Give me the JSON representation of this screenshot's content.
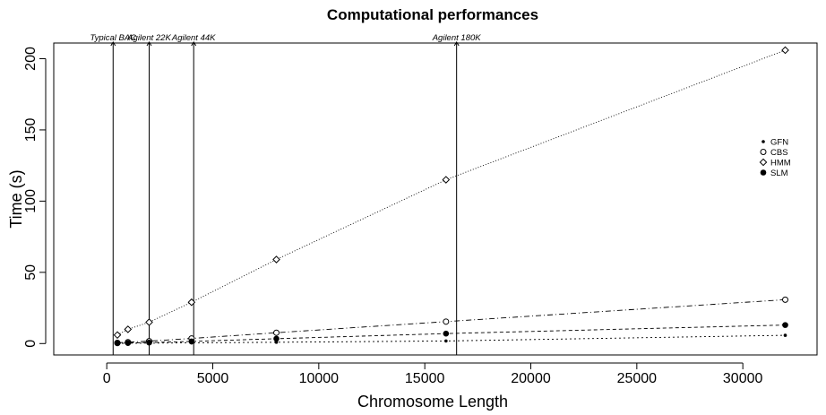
{
  "chart_data": {
    "type": "line",
    "title": "Computational performances",
    "xlabel": "Chromosome Length",
    "ylabel": "Time (s)",
    "xlim": [
      -2500,
      33500
    ],
    "ylim": [
      -8,
      211
    ],
    "xticks": [
      0,
      5000,
      10000,
      15000,
      20000,
      25000,
      30000
    ],
    "yticks": [
      0,
      50,
      100,
      150,
      200
    ],
    "legend_position": "right",
    "markers": [
      {
        "label": "Typical BAC",
        "x": 300
      },
      {
        "label": "Agilent 22K",
        "x": 2000
      },
      {
        "label": "Agilent 44K",
        "x": 4100
      },
      {
        "label": "Agilent 180K",
        "x": 16500
      }
    ],
    "series": [
      {
        "name": "GFN",
        "marker": "small-dot",
        "dash": "2,3",
        "x": [
          500,
          1000,
          2000,
          4000,
          8000,
          16000,
          32000
        ],
        "y": [
          0.1,
          0.2,
          0.3,
          0.5,
          0.9,
          1.8,
          5.8
        ]
      },
      {
        "name": "CBS",
        "marker": "open-circle",
        "dash": "6,3,1,3",
        "x": [
          500,
          1000,
          2000,
          4000,
          8000,
          16000,
          32000
        ],
        "y": [
          0.5,
          1.0,
          1.7,
          3.6,
          7.6,
          15.4,
          30.8
        ]
      },
      {
        "name": "HMM",
        "marker": "open-diamond",
        "dash": "1,2",
        "x": [
          500,
          1000,
          2000,
          4000,
          8000,
          16000,
          32000
        ],
        "y": [
          6,
          10,
          15,
          29,
          59,
          115,
          206
        ]
      },
      {
        "name": "SLM",
        "marker": "filled-circle",
        "dash": "4,3",
        "x": [
          500,
          1000,
          2000,
          4000,
          8000,
          16000,
          32000
        ],
        "y": [
          0.2,
          0.4,
          0.7,
          1.5,
          3.4,
          7.0,
          13.0
        ]
      }
    ]
  }
}
